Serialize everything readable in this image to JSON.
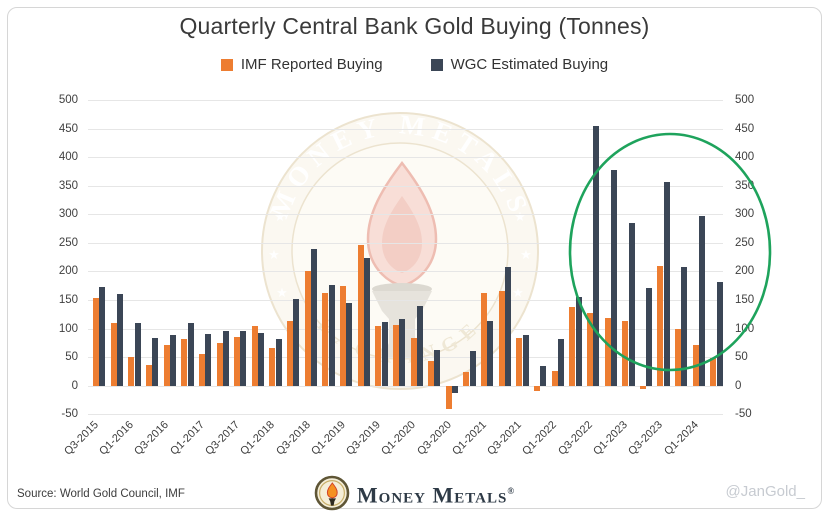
{
  "title": "Quarterly Central Bank Gold Buying (Tonnes)",
  "legend": [
    {
      "label": "IMF Reported Buying",
      "color": "#ED7D31"
    },
    {
      "label": "WGC Estimated Buying",
      "color": "#3B4656"
    }
  ],
  "watermark": {
    "arc_top": "MONEY METALS",
    "arc_bottom": "EXCHANGE"
  },
  "footer": {
    "source": "Source: World Gold Council, IMF",
    "brand": "Money Metals",
    "brand_reg": "®",
    "handle": "@JanGold_"
  },
  "chart_data": {
    "type": "bar",
    "title": "Quarterly Central Bank Gold Buying (Tonnes)",
    "ylabel": "",
    "xlabel": "",
    "ylim": [
      -50,
      500
    ],
    "ytick_step": 50,
    "grid": "horizontal",
    "legend_position": "top",
    "y_ticks": [
      500,
      450,
      400,
      350,
      300,
      250,
      200,
      150,
      100,
      50,
      0,
      -50
    ],
    "categories": [
      "Q3-2015",
      "Q4-2015",
      "Q1-2016",
      "Q2-2016",
      "Q3-2016",
      "Q4-2016",
      "Q1-2017",
      "Q2-2017",
      "Q3-2017",
      "Q4-2017",
      "Q1-2018",
      "Q2-2018",
      "Q3-2018",
      "Q4-2018",
      "Q1-2019",
      "Q2-2019",
      "Q3-2019",
      "Q4-2019",
      "Q1-2020",
      "Q2-2020",
      "Q3-2020",
      "Q4-2020",
      "Q1-2021",
      "Q2-2021",
      "Q3-2021",
      "Q4-2021",
      "Q1-2022",
      "Q2-2022",
      "Q3-2022",
      "Q4-2022",
      "Q1-2023",
      "Q2-2023",
      "Q3-2023",
      "Q4-2023",
      "Q1-2024",
      "Q2-2024"
    ],
    "x_tick_labels": [
      "Q3-2015",
      "Q1-2016",
      "Q3-2016",
      "Q1-2017",
      "Q3-2017",
      "Q1-2018",
      "Q3-2018",
      "Q1-2019",
      "Q3-2019",
      "Q1-2020",
      "Q3-2020",
      "Q1-2021",
      "Q3-2021",
      "Q1-2022",
      "Q3-2022",
      "Q1-2023",
      "Q3-2023",
      "Q1-2024"
    ],
    "series": [
      {
        "name": "IMF Reported Buying",
        "color": "#ED7D31",
        "values": [
          154,
          110,
          50,
          36,
          72,
          82,
          56,
          75,
          86,
          104,
          66,
          114,
          200,
          163,
          175,
          246,
          104,
          107,
          83,
          43,
          -40,
          24,
          163,
          165,
          83,
          -10,
          25,
          137,
          128,
          118,
          113,
          -5,
          210,
          100,
          72,
          48
        ]
      },
      {
        "name": "WGC Estimated Buying",
        "color": "#3B4656",
        "values": [
          172,
          161,
          110,
          84,
          88,
          110,
          91,
          95,
          96,
          92,
          82,
          151,
          239,
          177,
          145,
          224,
          112,
          116,
          139,
          63,
          -13,
          60,
          113,
          208,
          89,
          34,
          81,
          156,
          455,
          378,
          284,
          171,
          357,
          208,
          297,
          181
        ]
      }
    ],
    "annotation": {
      "type": "ellipse",
      "note": "highlight of 2022-2024 surge",
      "color": "#1EA35C"
    }
  }
}
